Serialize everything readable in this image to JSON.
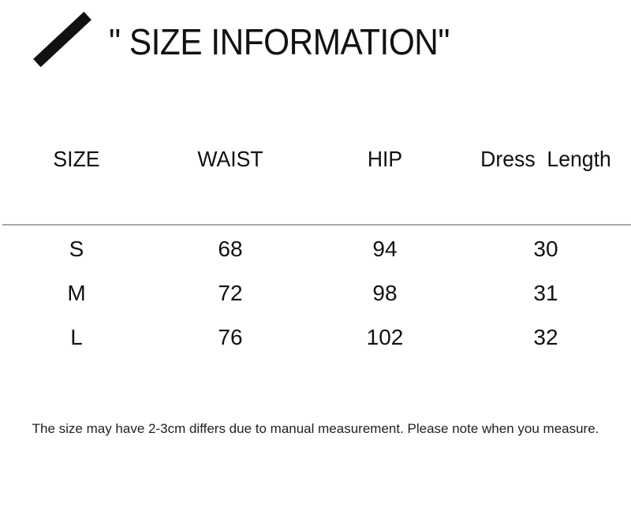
{
  "title": "\" SIZE INFORMATION\"",
  "table": {
    "headers": [
      "SIZE",
      "WAIST",
      "HIP",
      "Dress  Length"
    ],
    "rows": [
      [
        "S",
        "68",
        "94",
        "30"
      ],
      [
        "M",
        "72",
        "98",
        "31"
      ],
      [
        "L",
        "76",
        "102",
        "32"
      ]
    ]
  },
  "note": "The size may have 2-3cm differs due to manual measurement. Please note when you measure."
}
